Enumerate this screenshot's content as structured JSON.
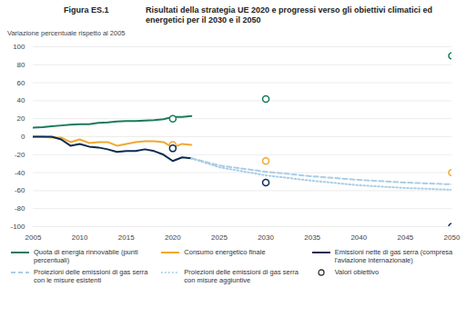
{
  "chart_data": {
    "type": "line",
    "title": "Risultati della strategia UE 2020 e progressi verso gli obiettivi climatici ed energetici per il 2030 e il 2050",
    "subtitle": "Figura ES.1",
    "y_label": "Variazione percentuale rispetto al 2005",
    "xlim": [
      2005,
      2050
    ],
    "xticks": [
      2005,
      2010,
      2015,
      2020,
      2025,
      2030,
      2035,
      2040,
      2045,
      2050
    ],
    "ylim": [
      -100,
      100
    ],
    "yticks": [
      -100,
      -80,
      -60,
      -40,
      -20,
      0,
      20,
      40,
      60,
      80,
      100
    ],
    "grid": true,
    "legend": "bottom",
    "series": [
      {
        "name": "Quota di energia rinnovabile (punti percentuali)",
        "type": "line",
        "color": "#1a7a5e",
        "line_style": "solid",
        "x": [
          2005,
          2006,
          2007,
          2008,
          2009,
          2010,
          2011,
          2012,
          2013,
          2014,
          2015,
          2016,
          2017,
          2018,
          2019,
          2020,
          2021,
          2022
        ],
        "values": [
          10,
          10.5,
          11.5,
          12.5,
          13.5,
          14,
          14,
          15.5,
          16,
          17,
          17.5,
          17.5,
          18,
          18.5,
          19.5,
          22,
          22,
          23
        ]
      },
      {
        "name": "Consumo energetico finale",
        "type": "line",
        "color": "#f0a830",
        "line_style": "solid",
        "x": [
          2005,
          2006,
          2007,
          2008,
          2009,
          2010,
          2011,
          2012,
          2013,
          2014,
          2015,
          2016,
          2017,
          2018,
          2019,
          2020,
          2021,
          2022
        ],
        "values": [
          0,
          0,
          -1,
          -1,
          -6,
          -3,
          -7,
          -6,
          -6,
          -10,
          -8,
          -6,
          -5,
          -5,
          -6,
          -12,
          -8,
          -9
        ]
      },
      {
        "name": "Emissioni nette di gas serra (compresa l'aviazione internazionale)",
        "type": "line",
        "color": "#0b2a55",
        "line_style": "solid",
        "x": [
          2005,
          2006,
          2007,
          2008,
          2009,
          2010,
          2011,
          2012,
          2013,
          2014,
          2015,
          2016,
          2017,
          2018,
          2019,
          2020,
          2021,
          2022
        ],
        "values": [
          0,
          0,
          0,
          -3,
          -10,
          -8,
          -11,
          -12,
          -14,
          -17,
          -16,
          -16,
          -14,
          -16,
          -20,
          -27,
          -23,
          -24
        ]
      },
      {
        "name": "Proiezioni delle emissioni di gas serra con le misure esistenti",
        "type": "line",
        "color": "#a9cde6",
        "line_style": "dashed",
        "x": [
          2022,
          2025,
          2030,
          2035,
          2040,
          2045,
          2050
        ],
        "values": [
          -24,
          -32,
          -39,
          -44,
          -48,
          -51,
          -53
        ]
      },
      {
        "name": "Proiezioni delle emissioni di gas serra con misure aggiuntive",
        "type": "line",
        "color": "#a9cde6",
        "line_style": "dotted",
        "x": [
          2022,
          2025,
          2030,
          2035,
          2040,
          2045,
          2050
        ],
        "values": [
          -24,
          -34,
          -43,
          -49,
          -54,
          -57,
          -59
        ]
      },
      {
        "name": "Valori obiettivo",
        "type": "scatter",
        "marker": "circle-open",
        "color": "#333333",
        "x": [
          2020,
          2020,
          2020,
          2030,
          2030,
          2030,
          2050,
          2050,
          2050
        ],
        "values": [
          20,
          -9,
          -13,
          42,
          -27,
          -51,
          90,
          -40,
          -100
        ],
        "colors": [
          "#1a7a5e",
          "#f0a830",
          "#0b2a55",
          "#1a7a5e",
          "#f0a830",
          "#0b2a55",
          "#1a7a5e",
          "#f0a830",
          "#0b2a55"
        ]
      }
    ]
  }
}
